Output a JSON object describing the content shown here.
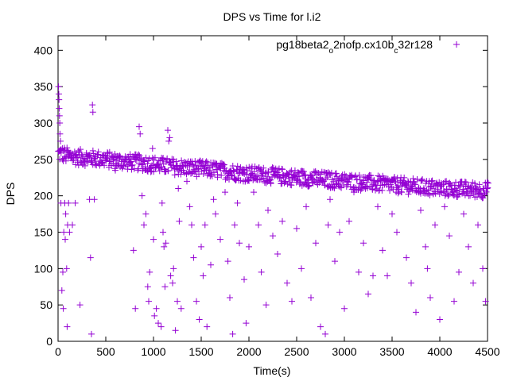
{
  "chart_data": {
    "type": "scatter",
    "title": "DPS vs Time for l.i2",
    "xlabel": "Time(s)",
    "ylabel": "DPS",
    "xlim": [
      0,
      4500
    ],
    "ylim": [
      0,
      420
    ],
    "xticks": [
      0,
      500,
      1000,
      1500,
      2000,
      2500,
      3000,
      3500,
      4000,
      4500
    ],
    "yticks": [
      0,
      50,
      100,
      150,
      200,
      250,
      300,
      350,
      400
    ],
    "grid": false,
    "legend_position": "top-right",
    "marker": "+",
    "series": [
      {
        "name": "pg18beta2_o2nofp.cx10b_c32r128",
        "name_parts": {
          "a": "pg18beta2",
          "b": "o",
          "c": "2nofp.cx10b",
          "d": "c",
          "e": "32r128"
        },
        "color": "#9400d3",
        "band": [
          [
            0,
            258
          ],
          [
            100,
            255
          ],
          [
            200,
            253
          ],
          [
            300,
            252
          ],
          [
            400,
            251
          ],
          [
            500,
            250
          ],
          [
            600,
            248
          ],
          [
            700,
            247
          ],
          [
            800,
            246
          ],
          [
            900,
            245
          ],
          [
            1000,
            243
          ],
          [
            1200,
            240
          ],
          [
            1400,
            238
          ],
          [
            1600,
            236
          ],
          [
            1800,
            233
          ],
          [
            2000,
            230
          ],
          [
            2200,
            228
          ],
          [
            2400,
            226
          ],
          [
            2600,
            224
          ],
          [
            2800,
            222
          ],
          [
            3000,
            220
          ],
          [
            3200,
            218
          ],
          [
            3400,
            216
          ],
          [
            3600,
            214
          ],
          [
            3800,
            212
          ],
          [
            4000,
            210
          ],
          [
            4200,
            209
          ],
          [
            4400,
            208
          ],
          [
            4500,
            208
          ]
        ],
        "band_spread": 14,
        "outliers": [
          [
            5,
            350
          ],
          [
            8,
            340
          ],
          [
            10,
            332
          ],
          [
            12,
            320
          ],
          [
            15,
            310
          ],
          [
            18,
            300
          ],
          [
            20,
            285
          ],
          [
            25,
            275
          ],
          [
            30,
            190
          ],
          [
            40,
            70
          ],
          [
            50,
            95
          ],
          [
            55,
            45
          ],
          [
            60,
            150
          ],
          [
            70,
            190
          ],
          [
            75,
            140
          ],
          [
            80,
            175
          ],
          [
            90,
            100
          ],
          [
            95,
            20
          ],
          [
            100,
            160
          ],
          [
            110,
            190
          ],
          [
            120,
            150
          ],
          [
            150,
            160
          ],
          [
            180,
            190
          ],
          [
            230,
            50
          ],
          [
            330,
            195
          ],
          [
            340,
            115
          ],
          [
            350,
            10
          ],
          [
            360,
            325
          ],
          [
            365,
            315
          ],
          [
            380,
            195
          ],
          [
            600,
            235
          ],
          [
            790,
            125
          ],
          [
            810,
            45
          ],
          [
            850,
            295
          ],
          [
            860,
            285
          ],
          [
            880,
            200
          ],
          [
            900,
            160
          ],
          [
            920,
            175
          ],
          [
            940,
            75
          ],
          [
            950,
            55
          ],
          [
            960,
            95
          ],
          [
            990,
            265
          ],
          [
            1000,
            140
          ],
          [
            1010,
            35
          ],
          [
            1030,
            45
          ],
          [
            1050,
            25
          ],
          [
            1080,
            20
          ],
          [
            1090,
            190
          ],
          [
            1100,
            150
          ],
          [
            1110,
            130
          ],
          [
            1120,
            75
          ],
          [
            1130,
            135
          ],
          [
            1150,
            290
          ],
          [
            1160,
            275
          ],
          [
            1170,
            280
          ],
          [
            1180,
            90
          ],
          [
            1200,
            80
          ],
          [
            1210,
            100
          ],
          [
            1230,
            15
          ],
          [
            1250,
            55
          ],
          [
            1260,
            210
          ],
          [
            1270,
            165
          ],
          [
            1290,
            45
          ],
          [
            1350,
            220
          ],
          [
            1380,
            185
          ],
          [
            1400,
            160
          ],
          [
            1420,
            115
          ],
          [
            1450,
            55
          ],
          [
            1480,
            30
          ],
          [
            1500,
            130
          ],
          [
            1520,
            90
          ],
          [
            1540,
            160
          ],
          [
            1560,
            20
          ],
          [
            1600,
            105
          ],
          [
            1630,
            195
          ],
          [
            1650,
            175
          ],
          [
            1700,
            140
          ],
          [
            1750,
            205
          ],
          [
            1780,
            110
          ],
          [
            1800,
            60
          ],
          [
            1830,
            10
          ],
          [
            1850,
            160
          ],
          [
            1880,
            190
          ],
          [
            1900,
            135
          ],
          [
            1950,
            85
          ],
          [
            1970,
            25
          ],
          [
            2000,
            130
          ],
          [
            2050,
            205
          ],
          [
            2100,
            160
          ],
          [
            2130,
            95
          ],
          [
            2180,
            50
          ],
          [
            2200,
            180
          ],
          [
            2250,
            145
          ],
          [
            2300,
            120
          ],
          [
            2350,
            165
          ],
          [
            2400,
            80
          ],
          [
            2450,
            55
          ],
          [
            2500,
            155
          ],
          [
            2550,
            100
          ],
          [
            2600,
            185
          ],
          [
            2650,
            60
          ],
          [
            2700,
            135
          ],
          [
            2750,
            20
          ],
          [
            2800,
            10
          ],
          [
            2830,
            160
          ],
          [
            2850,
            195
          ],
          [
            2900,
            110
          ],
          [
            2950,
            150
          ],
          [
            3000,
            45
          ],
          [
            3050,
            165
          ],
          [
            3100,
            205
          ],
          [
            3150,
            95
          ],
          [
            3200,
            135
          ],
          [
            3250,
            65
          ],
          [
            3300,
            90
          ],
          [
            3350,
            185
          ],
          [
            3400,
            125
          ],
          [
            3450,
            90
          ],
          [
            3500,
            175
          ],
          [
            3550,
            150
          ],
          [
            3600,
            205
          ],
          [
            3650,
            115
          ],
          [
            3700,
            80
          ],
          [
            3750,
            40
          ],
          [
            3800,
            180
          ],
          [
            3850,
            130
          ],
          [
            3870,
            100
          ],
          [
            3900,
            60
          ],
          [
            3950,
            160
          ],
          [
            4000,
            30
          ],
          [
            4050,
            185
          ],
          [
            4100,
            145
          ],
          [
            4150,
            55
          ],
          [
            4200,
            95
          ],
          [
            4250,
            175
          ],
          [
            4300,
            130
          ],
          [
            4350,
            80
          ],
          [
            4400,
            160
          ],
          [
            4450,
            100
          ],
          [
            4480,
            55
          ]
        ]
      }
    ]
  }
}
